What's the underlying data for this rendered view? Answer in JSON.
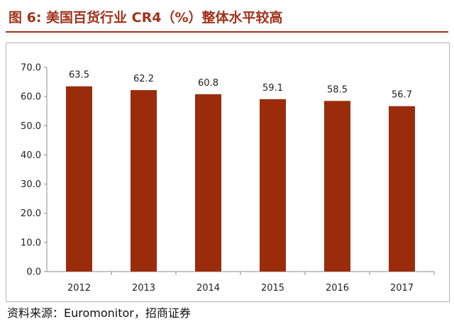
{
  "title": "图 6:  美国百货行业 CR4（%）整体水平较高",
  "source": "资料来源：Euromonitor，招商证券",
  "chart_data": {
    "type": "bar",
    "categories": [
      "2012",
      "2013",
      "2014",
      "2015",
      "2016",
      "2017"
    ],
    "values": [
      63.5,
      62.2,
      60.8,
      59.1,
      58.5,
      56.7
    ],
    "value_labels": [
      "63.5",
      "62.2",
      "60.8",
      "59.1",
      "58.5",
      "56.7"
    ],
    "yticks": [
      "0.0",
      "10.0",
      "20.0",
      "30.0",
      "40.0",
      "50.0",
      "60.0",
      "70.0"
    ],
    "ylim": [
      0,
      70
    ],
    "grid": false,
    "legend": "none",
    "bar_color": "#9b2c0b"
  }
}
